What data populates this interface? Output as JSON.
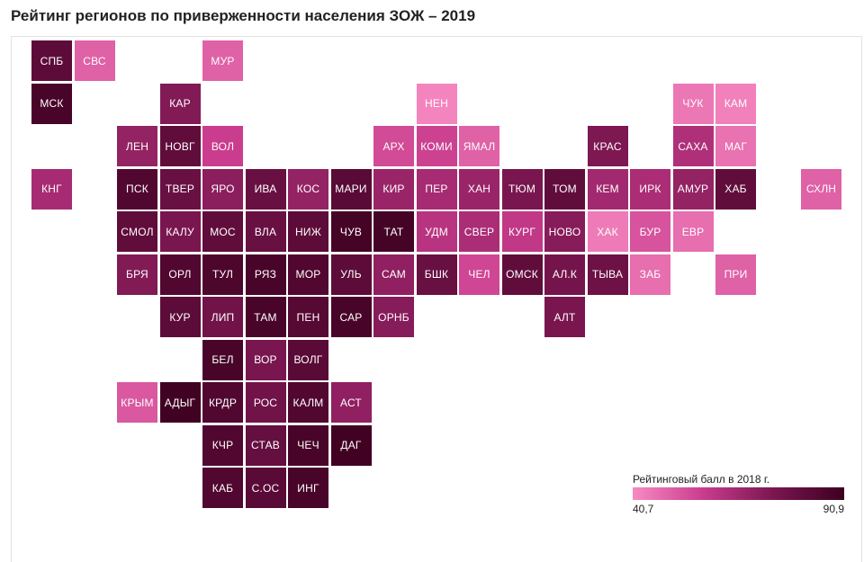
{
  "title": "Рейтинг регионов по приверженности населения ЗОЖ – 2019",
  "legend": {
    "title": "Рейтинговый балл в 2018 г.",
    "min_label": "40,7",
    "max_label": "90,9",
    "min": 40.7,
    "max": 90.9,
    "color_low": "#f78ac2",
    "color_high": "#3d0020"
  },
  "regions": [
    {
      "label": "СПБ",
      "col": 0,
      "row": 0,
      "score": 83
    },
    {
      "label": "СВС",
      "col": 1,
      "row": 0,
      "score": 50
    },
    {
      "label": "МУР",
      "col": 4,
      "row": 0,
      "score": 50
    },
    {
      "label": "МСК",
      "col": 0,
      "row": 1,
      "score": 88
    },
    {
      "label": "КАР",
      "col": 3,
      "row": 1,
      "score": 74
    },
    {
      "label": "НЕН",
      "col": 9,
      "row": 1,
      "score": 42
    },
    {
      "label": "ЧУК",
      "col": 15,
      "row": 1,
      "score": 45
    },
    {
      "label": "КАМ",
      "col": 16,
      "row": 1,
      "score": 43
    },
    {
      "label": "ЛЕН",
      "col": 2,
      "row": 2,
      "score": 70
    },
    {
      "label": "НОВГ",
      "col": 3,
      "row": 2,
      "score": 82
    },
    {
      "label": "ВОЛ",
      "col": 4,
      "row": 2,
      "score": 58
    },
    {
      "label": "АРХ",
      "col": 8,
      "row": 2,
      "score": 55
    },
    {
      "label": "КОМИ",
      "col": 9,
      "row": 2,
      "score": 57
    },
    {
      "label": "ЯМАЛ",
      "col": 10,
      "row": 2,
      "score": 50
    },
    {
      "label": "КРАС",
      "col": 13,
      "row": 2,
      "score": 75
    },
    {
      "label": "САХА",
      "col": 15,
      "row": 2,
      "score": 64
    },
    {
      "label": "МАГ",
      "col": 16,
      "row": 2,
      "score": 46
    },
    {
      "label": "КНГ",
      "col": 0,
      "row": 3,
      "score": 66
    },
    {
      "label": "ПСК",
      "col": 2,
      "row": 3,
      "score": 86
    },
    {
      "label": "ТВЕР",
      "col": 3,
      "row": 3,
      "score": 80
    },
    {
      "label": "ЯРО",
      "col": 4,
      "row": 3,
      "score": 72
    },
    {
      "label": "ИВА",
      "col": 5,
      "row": 3,
      "score": 80
    },
    {
      "label": "КОС",
      "col": 6,
      "row": 3,
      "score": 70
    },
    {
      "label": "МАРИ",
      "col": 7,
      "row": 3,
      "score": 84
    },
    {
      "label": "КИР",
      "col": 8,
      "row": 3,
      "score": 69
    },
    {
      "label": "ПЕР",
      "col": 9,
      "row": 3,
      "score": 66
    },
    {
      "label": "ХАН",
      "col": 10,
      "row": 3,
      "score": 69
    },
    {
      "label": "ТЮМ",
      "col": 11,
      "row": 3,
      "score": 76
    },
    {
      "label": "ТОМ",
      "col": 12,
      "row": 3,
      "score": 82
    },
    {
      "label": "КЕМ",
      "col": 13,
      "row": 3,
      "score": 67
    },
    {
      "label": "ИРК",
      "col": 14,
      "row": 3,
      "score": 65
    },
    {
      "label": "АМУР",
      "col": 15,
      "row": 3,
      "score": 70
    },
    {
      "label": "ХАБ",
      "col": 16,
      "row": 3,
      "score": 82
    },
    {
      "label": "СХЛН",
      "col": 18,
      "row": 3,
      "score": 50
    },
    {
      "label": "СМОЛ",
      "col": 2,
      "row": 4,
      "score": 82
    },
    {
      "label": "КАЛУ",
      "col": 3,
      "row": 4,
      "score": 76
    },
    {
      "label": "МОС",
      "col": 4,
      "row": 4,
      "score": 82
    },
    {
      "label": "ВЛА",
      "col": 5,
      "row": 4,
      "score": 80
    },
    {
      "label": "НИЖ",
      "col": 6,
      "row": 4,
      "score": 83
    },
    {
      "label": "ЧУВ",
      "col": 7,
      "row": 4,
      "score": 89
    },
    {
      "label": "ТАТ",
      "col": 8,
      "row": 4,
      "score": 89
    },
    {
      "label": "УДМ",
      "col": 9,
      "row": 4,
      "score": 62
    },
    {
      "label": "СВЕР",
      "col": 10,
      "row": 4,
      "score": 65
    },
    {
      "label": "КУРГ",
      "col": 11,
      "row": 4,
      "score": 60
    },
    {
      "label": "НОВО",
      "col": 12,
      "row": 4,
      "score": 73
    },
    {
      "label": "ХАК",
      "col": 13,
      "row": 4,
      "score": 44
    },
    {
      "label": "БУР",
      "col": 14,
      "row": 4,
      "score": 53
    },
    {
      "label": "ЕВР",
      "col": 15,
      "row": 4,
      "score": 47
    },
    {
      "label": "БРЯ",
      "col": 2,
      "row": 5,
      "score": 74
    },
    {
      "label": "ОРЛ",
      "col": 3,
      "row": 5,
      "score": 86
    },
    {
      "label": "ТУЛ",
      "col": 4,
      "row": 5,
      "score": 87
    },
    {
      "label": "РЯЗ",
      "col": 5,
      "row": 5,
      "score": 88
    },
    {
      "label": "МОР",
      "col": 6,
      "row": 5,
      "score": 86
    },
    {
      "label": "УЛЬ",
      "col": 7,
      "row": 5,
      "score": 83
    },
    {
      "label": "САМ",
      "col": 8,
      "row": 5,
      "score": 71
    },
    {
      "label": "БШК",
      "col": 9,
      "row": 5,
      "score": 80
    },
    {
      "label": "ЧЕЛ",
      "col": 10,
      "row": 5,
      "score": 56
    },
    {
      "label": "ОМСК",
      "col": 11,
      "row": 5,
      "score": 82
    },
    {
      "label": "АЛ.К",
      "col": 12,
      "row": 5,
      "score": 77
    },
    {
      "label": "ТЫВА",
      "col": 13,
      "row": 5,
      "score": 79
    },
    {
      "label": "ЗАБ",
      "col": 14,
      "row": 5,
      "score": 47
    },
    {
      "label": "ПРИ",
      "col": 16,
      "row": 5,
      "score": 50
    },
    {
      "label": "КУР",
      "col": 3,
      "row": 6,
      "score": 83
    },
    {
      "label": "ЛИП",
      "col": 4,
      "row": 6,
      "score": 78
    },
    {
      "label": "ТАМ",
      "col": 5,
      "row": 6,
      "score": 88
    },
    {
      "label": "ПЕН",
      "col": 6,
      "row": 6,
      "score": 85
    },
    {
      "label": "САР",
      "col": 7,
      "row": 6,
      "score": 88
    },
    {
      "label": "ОРНБ",
      "col": 8,
      "row": 6,
      "score": 73
    },
    {
      "label": "АЛТ",
      "col": 12,
      "row": 6,
      "score": 76
    },
    {
      "label": "БЕЛ",
      "col": 4,
      "row": 7,
      "score": 88
    },
    {
      "label": "ВОР",
      "col": 5,
      "row": 7,
      "score": 76
    },
    {
      "label": "ВОЛГ",
      "col": 6,
      "row": 7,
      "score": 84
    },
    {
      "label": "КРЫМ",
      "col": 2,
      "row": 8,
      "score": 52
    },
    {
      "label": "АДЫГ",
      "col": 3,
      "row": 8,
      "score": 90
    },
    {
      "label": "КРДР",
      "col": 4,
      "row": 8,
      "score": 86
    },
    {
      "label": "РОС",
      "col": 5,
      "row": 8,
      "score": 78
    },
    {
      "label": "КАЛМ",
      "col": 6,
      "row": 8,
      "score": 86
    },
    {
      "label": "АСТ",
      "col": 7,
      "row": 8,
      "score": 71
    },
    {
      "label": "КЧР",
      "col": 4,
      "row": 9,
      "score": 86
    },
    {
      "label": "СТАВ",
      "col": 5,
      "row": 9,
      "score": 81
    },
    {
      "label": "ЧЕЧ",
      "col": 6,
      "row": 9,
      "score": 88
    },
    {
      "label": "ДАГ",
      "col": 7,
      "row": 9,
      "score": 90
    },
    {
      "label": "КАБ",
      "col": 4,
      "row": 10,
      "score": 86
    },
    {
      "label": "С.ОС",
      "col": 5,
      "row": 10,
      "score": 84
    },
    {
      "label": "ИНГ",
      "col": 6,
      "row": 10,
      "score": 88
    }
  ]
}
